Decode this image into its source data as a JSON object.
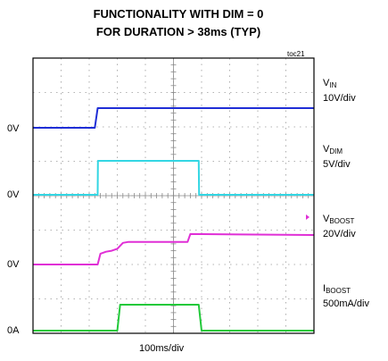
{
  "figure": {
    "title_line1": "FUNCTIONALITY WITH DIM = 0",
    "title_line2": "FOR DURATION > 38ms (TYP)",
    "tag": "toc21"
  },
  "chart_data": {
    "type": "line",
    "title": "FUNCTIONALITY WITH DIM = 0 FOR DURATION > 38ms (TYP)",
    "xlabel": "100ms/div",
    "x_divisions": 10,
    "y_divisions": 8,
    "grid": true,
    "x_unit": "ms",
    "series": [
      {
        "name": "VIN",
        "name_main": "V",
        "name_sub": "IN",
        "scale": "10V/div",
        "color": "#1f2ed6",
        "zero_label": "0V",
        "x": [
          0,
          220,
          230,
          1000
        ],
        "y": [
          0,
          0,
          13,
          13
        ]
      },
      {
        "name": "VDIM",
        "name_main": "V",
        "name_sub": "DIM",
        "scale": "5V/div",
        "color": "#33d6e3",
        "zero_label": "0V",
        "x": [
          0,
          230,
          231,
          590,
          591,
          1000
        ],
        "y": [
          0,
          0,
          10,
          10,
          0,
          0
        ]
      },
      {
        "name": "VBOOST",
        "name_main": "V",
        "name_sub": "BOOST",
        "scale": "20V/div",
        "color": "#e02fd6",
        "zero_label": "0V",
        "x": [
          0,
          230,
          240,
          260,
          280,
          300,
          320,
          340,
          550,
          560,
          1000
        ],
        "y": [
          0,
          0,
          11,
          13,
          14,
          16,
          22,
          23,
          23,
          31,
          30
        ]
      },
      {
        "name": "IBOOST",
        "name_main": "I",
        "name_sub": "BOOST",
        "scale": "500mA/div",
        "color": "#22c93a",
        "zero_label": "0A",
        "x": [
          0,
          300,
          310,
          590,
          600,
          1000
        ],
        "y": [
          0,
          0,
          700,
          700,
          0,
          0
        ]
      }
    ]
  }
}
